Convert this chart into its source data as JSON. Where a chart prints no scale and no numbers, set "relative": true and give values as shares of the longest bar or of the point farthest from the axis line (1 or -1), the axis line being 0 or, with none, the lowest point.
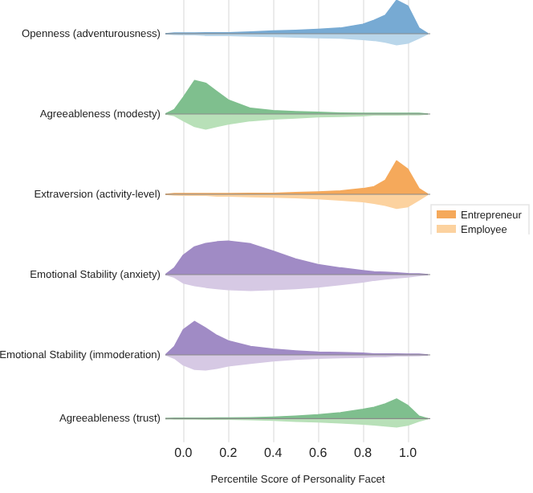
{
  "chart_data": [
    {
      "type": "area",
      "ylabel": "Openness (adventurousness)",
      "relative": true,
      "grid": "x",
      "tick_labels": false,
      "xlim": [
        -0.08,
        1.1
      ],
      "x": [
        -0.08,
        -0.04,
        0,
        0.05,
        0.1,
        0.15,
        0.2,
        0.3,
        0.4,
        0.5,
        0.6,
        0.7,
        0.8,
        0.85,
        0.9,
        0.95,
        1.0,
        1.05,
        1.09
      ],
      "series": [
        {
          "color": "#77aad3",
          "values": [
            0,
            0.02,
            0.02,
            0.02,
            0.03,
            0.03,
            0.03,
            0.05,
            0.08,
            0.1,
            0.13,
            0.17,
            0.28,
            0.4,
            0.55,
            1,
            0.83,
            0.17,
            0
          ]
        },
        {
          "color": "#b9d6ea",
          "values": [
            0,
            -0.02,
            -0.03,
            -0.03,
            -0.05,
            -0.05,
            -0.05,
            -0.07,
            -0.08,
            -0.1,
            -0.12,
            -0.13,
            -0.17,
            -0.2,
            -0.25,
            -0.33,
            -0.28,
            -0.13,
            0
          ]
        }
      ]
    },
    {
      "type": "area",
      "ylabel": "Agreeableness (modesty)",
      "relative": true,
      "grid": "x",
      "tick_labels": false,
      "xlim": [
        -0.08,
        1.1
      ],
      "x": [
        -0.08,
        -0.04,
        0,
        0.05,
        0.1,
        0.15,
        0.2,
        0.3,
        0.4,
        0.5,
        0.6,
        0.7,
        0.8,
        0.85,
        0.9,
        0.95,
        1.0,
        1.05,
        1.09
      ],
      "series": [
        {
          "color": "#7fbf8e",
          "values": [
            0,
            0.13,
            0.5,
            1,
            0.92,
            0.67,
            0.42,
            0.17,
            0.1,
            0.07,
            0.05,
            0.03,
            0.02,
            0.02,
            0.02,
            0.02,
            0.02,
            0.02,
            0
          ]
        },
        {
          "color": "#b8e0b8",
          "values": [
            0,
            -0.05,
            -0.2,
            -0.37,
            -0.45,
            -0.37,
            -0.3,
            -0.2,
            -0.15,
            -0.12,
            -0.08,
            -0.07,
            -0.05,
            -0.03,
            -0.03,
            -0.03,
            -0.02,
            -0.02,
            0
          ]
        }
      ]
    },
    {
      "type": "area",
      "ylabel": "Extraversion (activity-level)",
      "relative": true,
      "grid": "x",
      "tick_labels": false,
      "legend": "right",
      "xlim": [
        -0.08,
        1.1
      ],
      "x": [
        -0.08,
        -0.04,
        0,
        0.05,
        0.1,
        0.15,
        0.2,
        0.3,
        0.4,
        0.5,
        0.6,
        0.7,
        0.8,
        0.85,
        0.9,
        0.95,
        1.0,
        1.05,
        1.09
      ],
      "series": [
        {
          "name": "Entrepreneur",
          "color": "#f5a95b",
          "values": [
            0,
            0.02,
            0.02,
            0.02,
            0.02,
            0.02,
            0.02,
            0.03,
            0.03,
            0.05,
            0.07,
            0.1,
            0.17,
            0.23,
            0.42,
            1,
            0.75,
            0.17,
            0
          ]
        },
        {
          "name": "Employee",
          "color": "#fcd29f",
          "values": [
            0,
            -0.02,
            -0.03,
            -0.03,
            -0.03,
            -0.05,
            -0.05,
            -0.07,
            -0.08,
            -0.1,
            -0.13,
            -0.17,
            -0.22,
            -0.27,
            -0.33,
            -0.42,
            -0.37,
            -0.17,
            0
          ]
        }
      ]
    },
    {
      "type": "area",
      "ylabel": "Emotional Stability (anxiety)",
      "relative": true,
      "grid": "x",
      "tick_labels": false,
      "xlim": [
        -0.08,
        1.1
      ],
      "x": [
        -0.08,
        -0.04,
        0,
        0.05,
        0.1,
        0.15,
        0.2,
        0.3,
        0.4,
        0.5,
        0.6,
        0.7,
        0.8,
        0.85,
        0.9,
        0.95,
        1.0,
        1.05,
        1.09
      ],
      "series": [
        {
          "color": "#a08bc5",
          "values": [
            0,
            0.2,
            0.58,
            0.83,
            0.93,
            0.98,
            1,
            0.92,
            0.7,
            0.47,
            0.3,
            0.2,
            0.12,
            0.08,
            0.07,
            0.05,
            0.03,
            0.02,
            0
          ]
        },
        {
          "color": "#d6c9e4",
          "values": [
            0,
            -0.08,
            -0.25,
            -0.33,
            -0.38,
            -0.42,
            -0.45,
            -0.47,
            -0.45,
            -0.42,
            -0.37,
            -0.3,
            -0.22,
            -0.17,
            -0.13,
            -0.1,
            -0.07,
            -0.03,
            0
          ]
        }
      ]
    },
    {
      "type": "area",
      "ylabel": "Emotional Stability (immoderation)",
      "relative": true,
      "grid": "x",
      "tick_labels": false,
      "xlim": [
        -0.08,
        1.1
      ],
      "x": [
        -0.08,
        -0.04,
        0,
        0.05,
        0.1,
        0.15,
        0.2,
        0.3,
        0.4,
        0.5,
        0.6,
        0.7,
        0.8,
        0.85,
        0.9,
        0.95,
        1.0,
        1.05,
        1.09
      ],
      "series": [
        {
          "color": "#a08bc5",
          "values": [
            0,
            0.25,
            0.75,
            1,
            0.8,
            0.58,
            0.42,
            0.25,
            0.17,
            0.12,
            0.08,
            0.07,
            0.05,
            0.03,
            0.03,
            0.03,
            0.02,
            0.02,
            0
          ]
        },
        {
          "color": "#d6c9e4",
          "values": [
            0,
            -0.1,
            -0.3,
            -0.43,
            -0.45,
            -0.4,
            -0.33,
            -0.25,
            -0.18,
            -0.13,
            -0.1,
            -0.08,
            -0.07,
            -0.05,
            -0.05,
            -0.03,
            -0.03,
            -0.02,
            0
          ]
        }
      ]
    },
    {
      "type": "area",
      "ylabel": "Agreeableness (trust)",
      "xlabel": "Percentile Score of Personality Facet",
      "relative": true,
      "grid": "x",
      "tick_labels": "x",
      "xlim": [
        -0.08,
        1.1
      ],
      "xticks": [
        {
          "value": 0,
          "label": "0.0"
        },
        0.2,
        0.4,
        0.6,
        0.8,
        {
          "value": 1,
          "label": "1.0"
        }
      ],
      "x": [
        -0.08,
        -0.04,
        0,
        0.05,
        0.1,
        0.15,
        0.2,
        0.3,
        0.4,
        0.5,
        0.6,
        0.7,
        0.8,
        0.85,
        0.9,
        0.95,
        1.0,
        1.05,
        1.09
      ],
      "series": [
        {
          "color": "#7fbf8e",
          "values": [
            0,
            0.02,
            0.02,
            0.02,
            0.02,
            0.03,
            0.03,
            0.05,
            0.08,
            0.13,
            0.2,
            0.3,
            0.47,
            0.58,
            0.75,
            1,
            0.67,
            0.13,
            0
          ]
        },
        {
          "color": "#b8e0b8",
          "values": [
            0,
            -0.02,
            -0.02,
            -0.02,
            -0.03,
            -0.03,
            -0.03,
            -0.05,
            -0.08,
            -0.13,
            -0.17,
            -0.22,
            -0.28,
            -0.32,
            -0.37,
            -0.42,
            -0.33,
            -0.13,
            0
          ]
        }
      ]
    }
  ]
}
